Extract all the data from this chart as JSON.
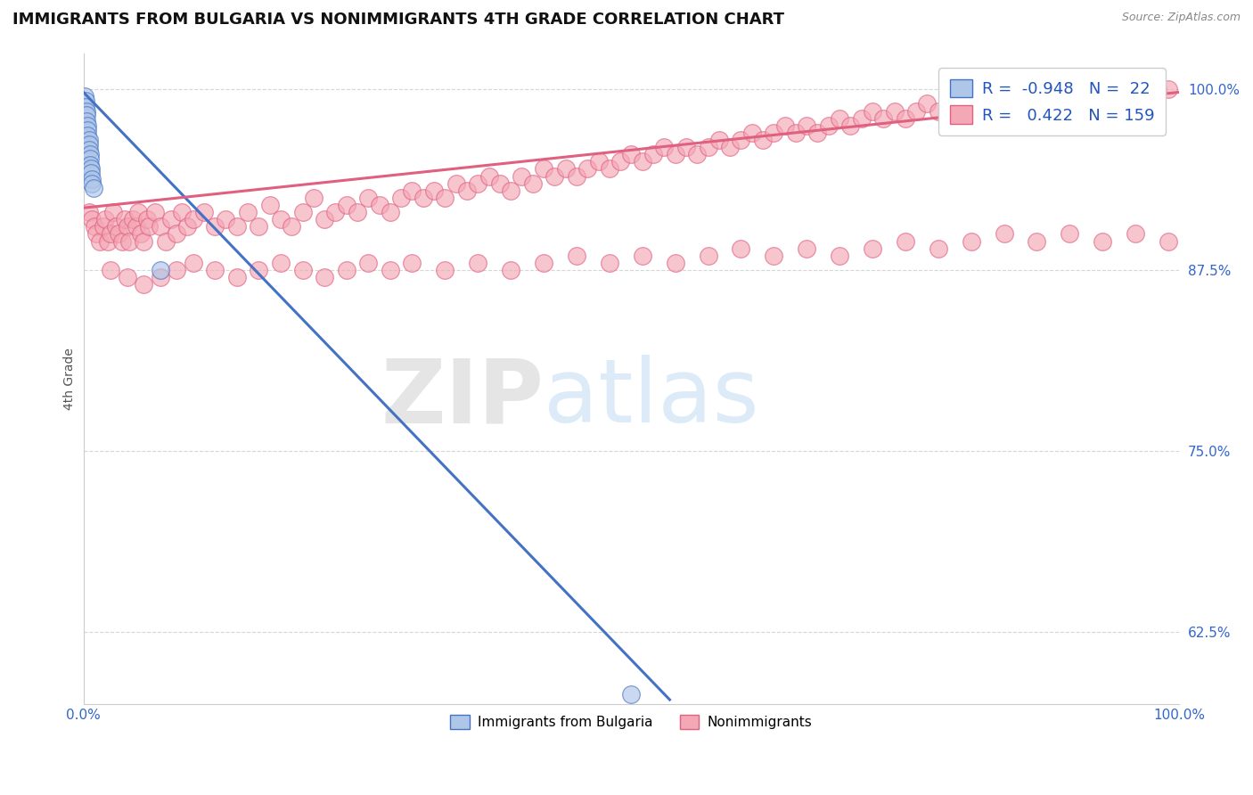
{
  "title": "IMMIGRANTS FROM BULGARIA VS NONIMMIGRANTS 4TH GRADE CORRELATION CHART",
  "source": "Source: ZipAtlas.com",
  "ylabel": "4th Grade",
  "xlim": [
    0.0,
    1.0
  ],
  "ylim": [
    0.575,
    1.025
  ],
  "x_ticks": [
    0.0,
    1.0
  ],
  "x_tick_labels": [
    "0.0%",
    "100.0%"
  ],
  "y_ticks": [
    0.625,
    0.75,
    0.875,
    1.0
  ],
  "y_tick_labels": [
    "62.5%",
    "75.0%",
    "87.5%",
    "100.0%"
  ],
  "blue_R": -0.948,
  "blue_N": 22,
  "pink_R": 0.422,
  "pink_N": 159,
  "blue_color": "#AEC6E8",
  "pink_color": "#F4A7B5",
  "blue_edge_color": "#4472C4",
  "pink_edge_color": "#E06080",
  "blue_line_color": "#4472C4",
  "pink_line_color": "#E06080",
  "legend_label_blue": "Immigrants from Bulgaria",
  "legend_label_pink": "Nonimmigrants",
  "watermark_zip": "ZIP",
  "watermark_atlas": "atlas",
  "title_fontsize": 13,
  "axis_label_fontsize": 10,
  "tick_fontsize": 11,
  "blue_scatter_x": [
    0.001,
    0.002,
    0.002,
    0.003,
    0.003,
    0.003,
    0.004,
    0.004,
    0.004,
    0.005,
    0.005,
    0.005,
    0.006,
    0.006,
    0.006,
    0.007,
    0.007,
    0.008,
    0.008,
    0.009,
    0.07,
    0.5
  ],
  "blue_scatter_y": [
    0.995,
    0.992,
    0.988,
    0.985,
    0.982,
    0.978,
    0.975,
    0.972,
    0.968,
    0.965,
    0.962,
    0.958,
    0.955,
    0.952,
    0.948,
    0.945,
    0.942,
    0.938,
    0.935,
    0.932,
    0.875,
    0.582
  ],
  "pink_scatter_x": [
    0.005,
    0.008,
    0.01,
    0.012,
    0.015,
    0.018,
    0.02,
    0.022,
    0.025,
    0.027,
    0.03,
    0.032,
    0.035,
    0.038,
    0.04,
    0.042,
    0.045,
    0.048,
    0.05,
    0.052,
    0.055,
    0.058,
    0.06,
    0.065,
    0.07,
    0.075,
    0.08,
    0.085,
    0.09,
    0.095,
    0.1,
    0.11,
    0.12,
    0.13,
    0.14,
    0.15,
    0.16,
    0.17,
    0.18,
    0.19,
    0.2,
    0.21,
    0.22,
    0.23,
    0.24,
    0.25,
    0.26,
    0.27,
    0.28,
    0.29,
    0.3,
    0.31,
    0.32,
    0.33,
    0.34,
    0.35,
    0.36,
    0.37,
    0.38,
    0.39,
    0.4,
    0.41,
    0.42,
    0.43,
    0.44,
    0.45,
    0.46,
    0.47,
    0.48,
    0.49,
    0.5,
    0.51,
    0.52,
    0.53,
    0.54,
    0.55,
    0.56,
    0.57,
    0.58,
    0.59,
    0.6,
    0.61,
    0.62,
    0.63,
    0.64,
    0.65,
    0.66,
    0.67,
    0.68,
    0.69,
    0.7,
    0.71,
    0.72,
    0.73,
    0.74,
    0.75,
    0.76,
    0.77,
    0.78,
    0.79,
    0.8,
    0.81,
    0.82,
    0.83,
    0.84,
    0.85,
    0.86,
    0.87,
    0.88,
    0.89,
    0.9,
    0.91,
    0.92,
    0.93,
    0.94,
    0.95,
    0.96,
    0.97,
    0.98,
    0.99,
    0.025,
    0.04,
    0.055,
    0.07,
    0.085,
    0.1,
    0.12,
    0.14,
    0.16,
    0.18,
    0.2,
    0.22,
    0.24,
    0.26,
    0.28,
    0.3,
    0.33,
    0.36,
    0.39,
    0.42,
    0.45,
    0.48,
    0.51,
    0.54,
    0.57,
    0.6,
    0.63,
    0.66,
    0.69,
    0.72,
    0.75,
    0.78,
    0.81,
    0.84,
    0.87,
    0.9,
    0.93,
    0.96,
    0.99
  ],
  "pink_scatter_y": [
    0.915,
    0.91,
    0.905,
    0.9,
    0.895,
    0.905,
    0.91,
    0.895,
    0.9,
    0.915,
    0.905,
    0.9,
    0.895,
    0.91,
    0.905,
    0.895,
    0.91,
    0.905,
    0.915,
    0.9,
    0.895,
    0.91,
    0.905,
    0.915,
    0.905,
    0.895,
    0.91,
    0.9,
    0.915,
    0.905,
    0.91,
    0.915,
    0.905,
    0.91,
    0.905,
    0.915,
    0.905,
    0.92,
    0.91,
    0.905,
    0.915,
    0.925,
    0.91,
    0.915,
    0.92,
    0.915,
    0.925,
    0.92,
    0.915,
    0.925,
    0.93,
    0.925,
    0.93,
    0.925,
    0.935,
    0.93,
    0.935,
    0.94,
    0.935,
    0.93,
    0.94,
    0.935,
    0.945,
    0.94,
    0.945,
    0.94,
    0.945,
    0.95,
    0.945,
    0.95,
    0.955,
    0.95,
    0.955,
    0.96,
    0.955,
    0.96,
    0.955,
    0.96,
    0.965,
    0.96,
    0.965,
    0.97,
    0.965,
    0.97,
    0.975,
    0.97,
    0.975,
    0.97,
    0.975,
    0.98,
    0.975,
    0.98,
    0.985,
    0.98,
    0.985,
    0.98,
    0.985,
    0.99,
    0.985,
    0.99,
    0.985,
    0.99,
    0.995,
    0.99,
    0.995,
    0.99,
    0.995,
    0.992,
    0.997,
    0.995,
    0.997,
    0.997,
    0.998,
    0.998,
    0.999,
    0.999,
    0.999,
    0.999,
    1.0,
    1.0,
    0.875,
    0.87,
    0.865,
    0.87,
    0.875,
    0.88,
    0.875,
    0.87,
    0.875,
    0.88,
    0.875,
    0.87,
    0.875,
    0.88,
    0.875,
    0.88,
    0.875,
    0.88,
    0.875,
    0.88,
    0.885,
    0.88,
    0.885,
    0.88,
    0.885,
    0.89,
    0.885,
    0.89,
    0.885,
    0.89,
    0.895,
    0.89,
    0.895,
    0.9,
    0.895,
    0.9,
    0.895,
    0.9,
    0.895
  ],
  "blue_trendline_x": [
    0.0,
    0.535
  ],
  "blue_trendline_y": [
    0.998,
    0.578
  ],
  "pink_trendline_x": [
    0.0,
    1.0
  ],
  "pink_trendline_y": [
    0.918,
    0.998
  ]
}
